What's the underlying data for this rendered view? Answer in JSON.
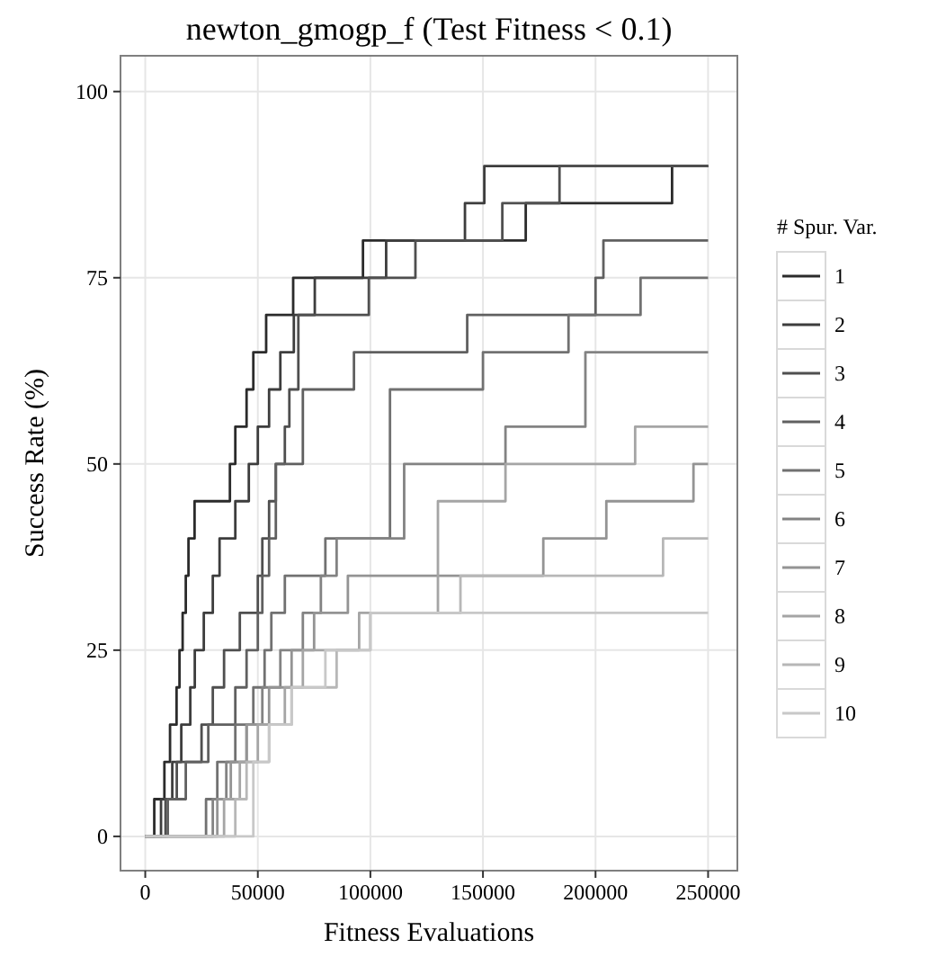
{
  "chart_data": {
    "type": "step",
    "title": "newton_gmogp_f (Test Fitness < 0.1)",
    "xlabel": "Fitness Evaluations",
    "ylabel": "Success Rate (%)",
    "legend_title": "# Spur. Var.",
    "legend": "right",
    "grid": true,
    "line_style": "solid",
    "xlim": [
      -11000,
      263000
    ],
    "ylim": [
      -4.6,
      104.8
    ],
    "xticks": [
      0,
      50000,
      100000,
      150000,
      200000,
      250000
    ],
    "yticks": [
      0,
      25,
      50,
      75,
      100
    ],
    "series": [
      {
        "name": "1",
        "color": "#2b2b2b",
        "x": [
          0,
          4000,
          8500,
          11000,
          13900,
          15200,
          16600,
          18000,
          19200,
          21900,
          37600,
          40000,
          45000,
          48000,
          53700,
          65700,
          96700,
          169000,
          234000,
          250000
        ],
        "values": [
          0,
          5,
          10,
          15,
          20,
          25,
          30,
          35,
          40,
          45,
          50,
          55,
          60,
          65,
          70,
          75,
          80,
          85,
          90,
          90
        ]
      },
      {
        "name": "2",
        "color": "#3d3d3d",
        "x": [
          0,
          7000,
          12000,
          16000,
          20000,
          22000,
          26000,
          30000,
          33000,
          40000,
          46000,
          50000,
          55000,
          60000,
          66000,
          75300,
          107000,
          142000,
          150600,
          250000
        ],
        "values": [
          0,
          5,
          10,
          15,
          20,
          25,
          30,
          35,
          40,
          45,
          50,
          55,
          60,
          65,
          70,
          75,
          80,
          85,
          90,
          90
        ]
      },
      {
        "name": "3",
        "color": "#4f4f4f",
        "x": [
          0,
          9000,
          14000,
          25000,
          30000,
          35000,
          42000,
          50000,
          52000,
          55000,
          58000,
          62000,
          64000,
          68000,
          99300,
          120000,
          158600,
          184000,
          250000
        ],
        "values": [
          0,
          5,
          10,
          15,
          20,
          25,
          30,
          35,
          40,
          45,
          50,
          55,
          60,
          70,
          75,
          80,
          85,
          90,
          90
        ]
      },
      {
        "name": "4",
        "color": "#606060",
        "x": [
          0,
          10000,
          18000,
          28000,
          40000,
          45000,
          50000,
          52000,
          55000,
          58000,
          70000,
          92700,
          143000,
          200000,
          203500,
          250000
        ],
        "values": [
          0,
          5,
          10,
          15,
          20,
          25,
          30,
          35,
          40,
          50,
          60,
          65,
          70,
          75,
          80,
          80
        ]
      },
      {
        "name": "5",
        "color": "#717171",
        "x": [
          0,
          27000,
          32000,
          40000,
          48000,
          53000,
          56000,
          62000,
          80000,
          108700,
          150000,
          188000,
          220000,
          250000
        ],
        "values": [
          0,
          5,
          10,
          15,
          20,
          25,
          30,
          35,
          40,
          60,
          65,
          70,
          75,
          75
        ]
      },
      {
        "name": "6",
        "color": "#838383",
        "x": [
          0,
          30000,
          36000,
          45000,
          52000,
          60000,
          70000,
          78000,
          85000,
          115000,
          160000,
          195500,
          250000
        ],
        "values": [
          0,
          5,
          10,
          15,
          20,
          25,
          30,
          35,
          40,
          50,
          55,
          65,
          65
        ]
      },
      {
        "name": "7",
        "color": "#949494",
        "x": [
          0,
          32000,
          38000,
          45000,
          55000,
          65000,
          75000,
          90000,
          140000,
          176800,
          204800,
          243500,
          250000
        ],
        "values": [
          0,
          5,
          10,
          15,
          20,
          25,
          30,
          35,
          35,
          40,
          45,
          50,
          50
        ]
      },
      {
        "name": "8",
        "color": "#a5a5a5",
        "x": [
          0,
          35000,
          42000,
          50000,
          62000,
          70000,
          95000,
          130000,
          160000,
          217600,
          250000
        ],
        "values": [
          0,
          5,
          10,
          15,
          20,
          25,
          30,
          45,
          50,
          55,
          55
        ]
      },
      {
        "name": "9",
        "color": "#b7b7b7",
        "x": [
          0,
          40000,
          45000,
          55000,
          65000,
          85000,
          100000,
          140000,
          230000,
          250000
        ],
        "values": [
          0,
          5,
          10,
          15,
          20,
          25,
          30,
          35,
          40,
          40
        ]
      },
      {
        "name": "10",
        "color": "#c8c8c8",
        "x": [
          0,
          48000,
          55000,
          65000,
          80000,
          100000,
          151400,
          250000
        ],
        "values": [
          0,
          10,
          15,
          20,
          25,
          30,
          30,
          30
        ]
      }
    ]
  }
}
